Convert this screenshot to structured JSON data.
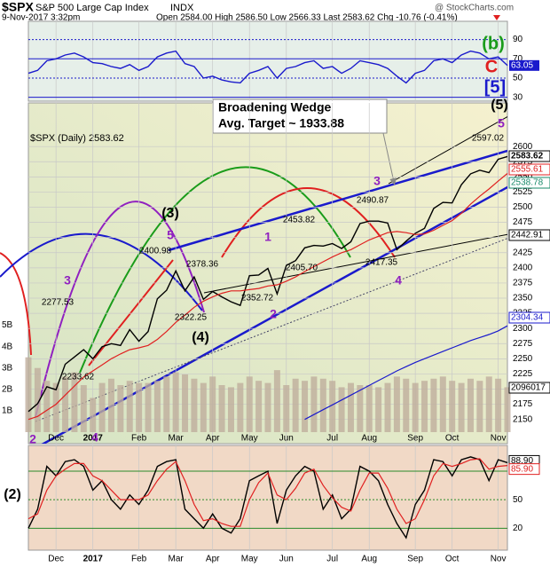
{
  "header": {
    "symbol": "$SPX",
    "name": "S&P 500 Large Cap Index",
    "exchange": "INDX",
    "datetime": "9-Nov-2017 3:32pm",
    "quote": "Open 2584.00  High 2586.50  Low 2566.33  Last 2583.62  Chg -10.76 (-0.41%)",
    "watermark": "@ StockCharts.com"
  },
  "chart_data": [
    {
      "type": "line",
      "color": "#1a1acc",
      "values": [
        55,
        58,
        68,
        70,
        74,
        76,
        72,
        66,
        65,
        62,
        60,
        64,
        58,
        62,
        72,
        76,
        78,
        65,
        62,
        50,
        52,
        48,
        46,
        45,
        55,
        58,
        62,
        50,
        60,
        62,
        66,
        68,
        60,
        62,
        55,
        60,
        68,
        66,
        64,
        60,
        52,
        45,
        55,
        58,
        68,
        70,
        66,
        74,
        78,
        76,
        70,
        72,
        63.05
      ],
      "ylim": [
        26,
        109
      ],
      "yticks": [
        30,
        50,
        70,
        90
      ],
      "last_label": 63.05,
      "grid": true
    },
    {
      "type": "line",
      "legend": "$SPX (Daily) 2583.62",
      "categories": [
        null,
        null,
        null,
        "Dec",
        null,
        null,
        null,
        "2017",
        null,
        null,
        null,
        null,
        "Feb",
        null,
        null,
        null,
        "Mar",
        null,
        null,
        null,
        "Apr",
        null,
        null,
        null,
        "May",
        null,
        null,
        null,
        "Jun",
        null,
        null,
        null,
        null,
        "Jul",
        null,
        null,
        null,
        "Aug",
        null,
        null,
        null,
        null,
        "Sep",
        null,
        null,
        null,
        "Oct",
        null,
        null,
        null,
        null,
        "Nov",
        null
      ],
      "series": [
        {
          "color": "#000000",
          "values": [
            2163,
            2176,
            2204,
            2199,
            2241,
            2253,
            2265,
            2250,
            2270,
            2275,
            2272,
            2298,
            2279,
            2295,
            2349,
            2363,
            2395,
            2362,
            2385,
            2348,
            2361,
            2352,
            2344,
            2338,
            2387,
            2388,
            2399,
            2357,
            2404,
            2412,
            2433,
            2437,
            2436,
            2440,
            2432,
            2443,
            2473,
            2477,
            2477,
            2474,
            2430,
            2444,
            2457,
            2465,
            2498,
            2508,
            2507,
            2537,
            2555,
            2561,
            2557,
            2579,
            2583.62
          ]
        },
        {
          "color": "#e02020",
          "values": [
            2150,
            2155,
            2165,
            2175,
            2190,
            2205,
            2220,
            2230,
            2240,
            2250,
            2258,
            2265,
            2268,
            2272,
            2282,
            2295,
            2310,
            2322,
            2335,
            2345,
            2352,
            2358,
            2362,
            2362,
            2364,
            2366,
            2370,
            2372,
            2378,
            2385,
            2394,
            2402,
            2410,
            2418,
            2425,
            2430,
            2438,
            2446,
            2452,
            2458,
            2460,
            2458,
            2455,
            2456,
            2462,
            2470,
            2478,
            2490,
            2505,
            2518,
            2530,
            2543,
            2555.61
          ]
        },
        {
          "color": "#1a1acc",
          "values": [
            null,
            null,
            null,
            null,
            null,
            null,
            null,
            null,
            null,
            null,
            null,
            null,
            null,
            null,
            null,
            null,
            null,
            null,
            null,
            null,
            null,
            null,
            null,
            null,
            null,
            null,
            null,
            null,
            null,
            null,
            2150,
            2158,
            2166,
            2174,
            2182,
            2190,
            2198,
            2206,
            2214,
            2222,
            2230,
            2237,
            2244,
            2250,
            2256,
            2262,
            2268,
            2274,
            2280,
            2285,
            2290,
            2296,
            2304.34
          ]
        }
      ],
      "ylim": [
        2110,
        2672
      ],
      "yticks": [
        2150,
        2175,
        2200,
        2225,
        2250,
        2275,
        2300,
        2325,
        2350,
        2375,
        2400,
        2425,
        2450,
        2475,
        2500,
        2525,
        2550,
        2575,
        2600
      ],
      "grid": true,
      "volume": {
        "color": "#bfae9c",
        "lim": [
          0,
          15.4
        ],
        "values": [
          3.5,
          3.0,
          2.4,
          2.3,
          2.6,
          2.8,
          2.2,
          1.6,
          2.3,
          2.5,
          2.2,
          2.4,
          2.3,
          2.3,
          2.4,
          2.6,
          2.8,
          2.7,
          2.5,
          2.3,
          2.6,
          2.2,
          2.1,
          2.3,
          2.6,
          2.4,
          2.3,
          2.9,
          2.2,
          2.5,
          2.4,
          2.6,
          2.5,
          2.4,
          2.1,
          2.3,
          2.2,
          2.2,
          2.1,
          2.3,
          2.6,
          2.5,
          2.3,
          2.4,
          2.5,
          2.6,
          2.4,
          2.3,
          2.5,
          2.4,
          2.6,
          2.5,
          2.1
        ],
        "ticks": [
          {
            "value": 1,
            "label": "1B"
          },
          {
            "value": 2,
            "label": "2B"
          },
          {
            "value": 3,
            "label": "3B"
          },
          {
            "value": 4,
            "label": "4B"
          },
          {
            "value": 5,
            "label": "5B"
          }
        ]
      },
      "price_labels": [
        2277.53,
        2233.62,
        2400.98,
        2322.25,
        2378.36,
        2352.72,
        2453.82,
        {
          "value": 2405.7,
          "label": "2405.70"
        },
        2490.87,
        2417.35,
        2597.02
      ],
      "right_labels": [
        2583.62,
        2555.61,
        2538.78,
        2442.91,
        2304.34,
        2096017
      ],
      "right_label_colors": [
        "#000000",
        "#e02020",
        "#1a8a6a",
        "#000000",
        "#1a1acc",
        "#000000"
      ],
      "wedge_note": [
        "Broadening Wedge",
        "Avg. Target ~ 1933.88"
      ],
      "annotations": [
        {
          "text": "(b)",
          "color": "#1a9c1a"
        },
        {
          "text": "C",
          "color": "#e02020"
        },
        {
          "text": "[5]",
          "color": "#1a1acc"
        },
        {
          "text": "(5)",
          "color": "#000000"
        },
        {
          "text": "5",
          "color": "#9020c0"
        },
        {
          "text": "3",
          "color": "#9020c0"
        },
        {
          "text": "(3)",
          "color": "#000000"
        },
        {
          "text": "5",
          "color": "#9020c0"
        },
        {
          "text": "3",
          "color": "#9020c0"
        },
        {
          "text": "1",
          "color": "#9020c0"
        },
        {
          "text": "2",
          "color": "#9020c0"
        },
        {
          "text": "(4)",
          "color": "#000000"
        },
        {
          "text": "4",
          "color": "#9020c0"
        },
        {
          "text": "4",
          "color": "#9020c0"
        },
        {
          "text": "2",
          "color": "#9020c0"
        },
        {
          "text": "(2)",
          "color": "#000000"
        }
      ]
    },
    {
      "type": "line",
      "series": [
        {
          "color": "#000000",
          "values": [
            20,
            40,
            85,
            75,
            90,
            92,
            85,
            60,
            70,
            50,
            40,
            55,
            45,
            60,
            85,
            90,
            92,
            40,
            30,
            20,
            35,
            20,
            15,
            30,
            70,
            75,
            80,
            25,
            60,
            75,
            85,
            80,
            40,
            55,
            30,
            40,
            85,
            80,
            70,
            45,
            25,
            10,
            45,
            60,
            92,
            90,
            75,
            92,
            95,
            92,
            70,
            92,
            88.9
          ]
        },
        {
          "color": "#e02020",
          "values": [
            30,
            35,
            60,
            75,
            82,
            88,
            88,
            75,
            70,
            60,
            50,
            50,
            50,
            55,
            70,
            82,
            90,
            70,
            45,
            28,
            30,
            25,
            22,
            22,
            50,
            68,
            78,
            55,
            50,
            62,
            78,
            82,
            65,
            52,
            42,
            38,
            60,
            78,
            78,
            62,
            40,
            25,
            30,
            50,
            75,
            88,
            85,
            88,
            92,
            93,
            82,
            85,
            85.9
          ]
        }
      ],
      "ylim": [
        -3,
        107
      ],
      "yticks": [
        20,
        50,
        80
      ],
      "grid": true,
      "last_labels": [
        {
          "value": 88.9,
          "label": "88.90"
        },
        {
          "value": 85.9,
          "label": "85.90"
        }
      ]
    }
  ]
}
